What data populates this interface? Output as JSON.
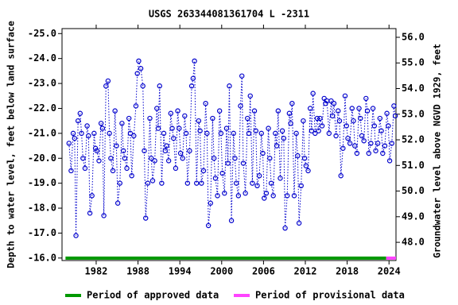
{
  "chart_data": {
    "type": "scatter",
    "title": "USGS 263344081361704 L  -2311",
    "y_label": "Depth to water level, feet below land surface",
    "y2_label": "Groundwater level above NGVD 1929, feet",
    "xlim": [
      1977.1,
      2025.0
    ],
    "xticks": [
      1982,
      1988,
      1994,
      2000,
      2006,
      2012,
      2018,
      2024
    ],
    "ylim": [
      -15.9,
      -25.2
    ],
    "yticks": [
      {
        "value": -25,
        "label": "-25.0"
      },
      {
        "value": -24,
        "label": "-24.0"
      },
      {
        "value": -23,
        "label": "-23.0"
      },
      {
        "value": -22,
        "label": "-22.0"
      },
      {
        "value": -21,
        "label": "-21.0"
      },
      {
        "value": -20,
        "label": "-20.0"
      },
      {
        "value": -19,
        "label": "-19.0"
      },
      {
        "value": -18,
        "label": "-18.0"
      },
      {
        "value": -17,
        "label": "-17.0"
      },
      {
        "value": -16,
        "label": "-16.0"
      }
    ],
    "y2lim": [
      47.29,
      56.34
    ],
    "y2ticks": [
      {
        "value": 48,
        "label": "48.0"
      },
      {
        "value": 49,
        "label": "49.0"
      },
      {
        "value": 50,
        "label": "50.0"
      },
      {
        "value": 51,
        "label": "51.0"
      },
      {
        "value": 52,
        "label": "52.0"
      },
      {
        "value": 53,
        "label": "53.0"
      },
      {
        "value": 54,
        "label": "54.0"
      },
      {
        "value": 55,
        "label": "55.0"
      },
      {
        "value": 56,
        "label": "56.0"
      }
    ],
    "x": [
      1978.1,
      1978.4,
      1978.7,
      1978.9,
      1979.1,
      1979.4,
      1979.7,
      1979.9,
      1980.1,
      1980.4,
      1980.7,
      1980.9,
      1981.1,
      1981.4,
      1981.7,
      1981.9,
      1982.1,
      1982.4,
      1982.7,
      1982.9,
      1983.1,
      1983.4,
      1983.7,
      1983.9,
      1984.1,
      1984.4,
      1984.7,
      1984.9,
      1985.1,
      1985.4,
      1985.7,
      1985.9,
      1986.1,
      1986.4,
      1986.7,
      1986.9,
      1987.1,
      1987.4,
      1987.7,
      1987.9,
      1988.1,
      1988.4,
      1988.7,
      1988.9,
      1989.1,
      1989.4,
      1989.7,
      1989.9,
      1990.1,
      1990.4,
      1990.7,
      1990.9,
      1991.1,
      1991.4,
      1991.7,
      1991.9,
      1992.1,
      1992.4,
      1992.7,
      1992.9,
      1993.1,
      1993.4,
      1993.7,
      1993.9,
      1994.1,
      1994.4,
      1994.7,
      1994.9,
      1995.1,
      1995.4,
      1995.7,
      1995.9,
      1996.1,
      1996.4,
      1996.7,
      1996.9,
      1997.1,
      1997.4,
      1997.7,
      1997.9,
      1998.1,
      1998.4,
      1998.7,
      1998.9,
      1999.1,
      1999.4,
      1999.7,
      1999.9,
      2000.1,
      2000.4,
      2000.7,
      2000.9,
      2001.1,
      2001.4,
      2001.7,
      2001.9,
      2002.1,
      2002.4,
      2002.7,
      2002.9,
      2003.1,
      2003.4,
      2003.7,
      2003.9,
      2004.1,
      2004.4,
      2004.7,
      2004.9,
      2005.1,
      2005.4,
      2005.7,
      2005.9,
      2006.1,
      2006.4,
      2006.7,
      2006.9,
      2007.1,
      2007.4,
      2007.7,
      2007.9,
      2008.1,
      2008.4,
      2008.7,
      2008.9,
      2009.1,
      2009.4,
      2009.7,
      2009.9,
      2010.1,
      2010.4,
      2010.7,
      2010.9,
      2011.1,
      2011.4,
      2011.7,
      2011.9,
      2012.1,
      2012.4,
      2012.7,
      2012.9,
      2013.1,
      2013.4,
      2013.7,
      2013.9,
      2014.1,
      2014.4,
      2014.7,
      2014.9,
      2015.1,
      2015.4,
      2015.7,
      2015.9,
      2016.1,
      2016.4,
      2016.7,
      2016.9,
      2017.1,
      2017.4,
      2017.7,
      2017.9,
      2018.1,
      2018.4,
      2018.7,
      2018.9,
      2019.1,
      2019.4,
      2019.7,
      2019.9,
      2020.1,
      2020.4,
      2020.7,
      2020.9,
      2021.1,
      2021.4,
      2021.7,
      2021.9,
      2022.1,
      2022.4,
      2022.7,
      2022.9,
      2023.1,
      2023.4,
      2023.7,
      2023.9,
      2024.1,
      2024.4,
      2024.7,
      2024.9
    ],
    "series": [
      {
        "name": "Water level",
        "color": "#0000cc",
        "values": [
          -20.6,
          -19.5,
          -21.0,
          -20.8,
          -16.9,
          -21.5,
          -21.8,
          -21.0,
          -20.0,
          -19.6,
          -21.3,
          -20.9,
          -17.8,
          -18.5,
          -21.0,
          -20.4,
          -20.3,
          -19.9,
          -21.4,
          -21.2,
          -17.7,
          -22.9,
          -23.1,
          -21.0,
          -20.0,
          -19.5,
          -21.9,
          -20.5,
          -18.2,
          -19.0,
          -21.4,
          -20.3,
          -20.0,
          -19.6,
          -21.6,
          -21.0,
          -19.3,
          -20.9,
          -22.1,
          -23.4,
          -23.9,
          -23.6,
          -22.9,
          -20.3,
          -17.6,
          -19.0,
          -21.6,
          -20.0,
          -19.1,
          -19.9,
          -22.0,
          -21.2,
          -22.9,
          -19.0,
          -21.0,
          -20.3,
          -20.5,
          -19.9,
          -21.8,
          -21.2,
          -20.8,
          -19.6,
          -21.9,
          -21.2,
          -20.2,
          -20.0,
          -21.7,
          -21.0,
          -19.0,
          -20.3,
          -22.9,
          -23.2,
          -23.9,
          -19.0,
          -21.5,
          -21.1,
          -19.0,
          -19.5,
          -22.2,
          -21.0,
          -17.3,
          -18.2,
          -21.6,
          -20.0,
          -19.2,
          -18.5,
          -21.9,
          -21.0,
          -19.4,
          -18.6,
          -21.2,
          -19.8,
          -22.9,
          -17.5,
          -21.0,
          -20.0,
          -19.0,
          -18.5,
          -22.1,
          -23.3,
          -19.8,
          -18.6,
          -21.6,
          -21.0,
          -22.5,
          -19.0,
          -21.9,
          -21.1,
          -18.9,
          -19.3,
          -21.0,
          -20.2,
          -18.4,
          -18.6,
          -21.2,
          -20.0,
          -19.0,
          -18.5,
          -21.0,
          -20.5,
          -21.9,
          -19.2,
          -21.1,
          -20.8,
          -17.2,
          -18.5,
          -21.8,
          -21.4,
          -22.2,
          -18.5,
          -21.0,
          -20.1,
          -17.4,
          -18.9,
          -21.5,
          -20.0,
          -19.7,
          -19.5,
          -22.0,
          -21.1,
          -22.6,
          -21.0,
          -21.6,
          -21.1,
          -21.6,
          -21.3,
          -22.4,
          -22.2,
          -22.3,
          -21.0,
          -22.3,
          -21.7,
          -22.2,
          -20.9,
          -21.9,
          -21.5,
          -19.3,
          -20.4,
          -22.5,
          -21.3,
          -20.8,
          -20.6,
          -22.0,
          -21.5,
          -20.5,
          -20.2,
          -22.0,
          -21.6,
          -20.9,
          -20.7,
          -22.4,
          -21.9,
          -20.2,
          -20.6,
          -22.0,
          -21.3,
          -20.3,
          -20.6,
          -21.6,
          -21.1,
          -20.2,
          -20.5,
          -21.8,
          -21.3,
          -19.9,
          -20.6,
          -22.1,
          -21.7
        ]
      }
    ],
    "periods": [
      {
        "name": "Period of approved data",
        "color": "#009900",
        "start": 1977.6,
        "end": 2023.6
      },
      {
        "name": "Period of provisional data",
        "color": "#ff44ff",
        "start": 2023.6,
        "end": 2025.0
      }
    ]
  }
}
